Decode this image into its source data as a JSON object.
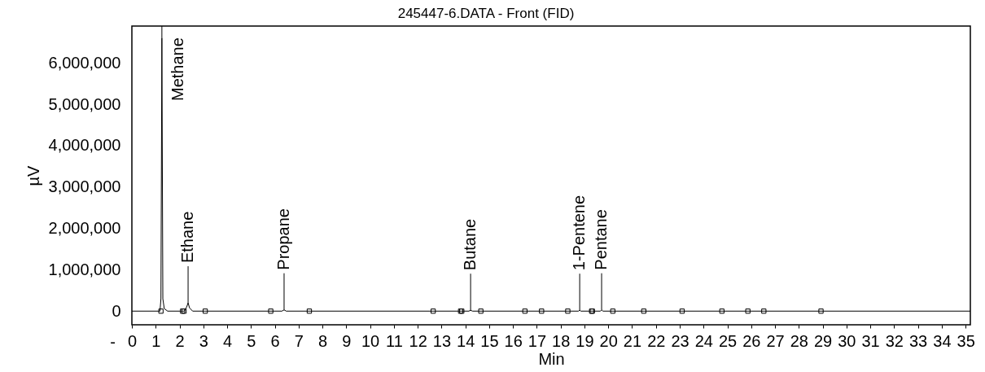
{
  "chart_data": {
    "type": "line",
    "title": "245447-6.DATA - Front (FID)",
    "xlabel": "Min",
    "ylabel": "µV",
    "xlim": [
      0,
      35.2
    ],
    "ylim": [
      -330000,
      6890000
    ],
    "xticks": [
      0,
      1,
      2,
      3,
      4,
      5,
      6,
      7,
      8,
      9,
      10,
      11,
      12,
      13,
      14,
      15,
      16,
      17,
      18,
      19,
      20,
      21,
      22,
      23,
      24,
      25,
      26,
      27,
      28,
      29,
      30,
      31,
      32,
      33,
      34,
      35
    ],
    "yticks": [
      0,
      {
        "value": 1000000,
        "label": "1,000,000"
      },
      {
        "value": 2000000,
        "label": "2,000,000"
      },
      {
        "value": 3000000,
        "label": "3,000,000"
      },
      {
        "value": 4000000,
        "label": "4,000,000"
      },
      {
        "value": 5000000,
        "label": "5,000,000"
      },
      {
        "value": 6000000,
        "label": "6,000,000"
      }
    ],
    "grid": false,
    "legend": false,
    "series": [
      {
        "type": "line",
        "color": "#000000",
        "x": [
          0,
          1.18,
          1.22,
          1.26,
          1.3,
          1.36,
          1.5,
          2.2,
          2.3,
          2.36,
          2.42,
          2.55,
          6.3,
          6.39,
          6.48,
          14.15,
          14.22,
          14.3,
          18.75,
          18.8,
          18.85,
          19.67,
          19.72,
          19.78,
          35.2
        ],
        "values": [
          0,
          0,
          300000,
          6600000,
          300000,
          60000,
          0,
          0,
          100000,
          200000,
          80000,
          0,
          0,
          30000,
          0,
          0,
          20000,
          0,
          0,
          20000,
          0,
          0,
          30000,
          0,
          0
        ]
      },
      {
        "type": "scatter",
        "color": "#000000",
        "marker": "square",
        "x": [
          1.22,
          2.13,
          2.19,
          3.08,
          5.83,
          7.45,
          12.65,
          13.8,
          13.85,
          14.65,
          16.5,
          17.2,
          18.3,
          19.3,
          19.33,
          20.19,
          21.49,
          23.1,
          24.77,
          25.86,
          26.53,
          28.93
        ],
        "values": [
          0,
          0,
          0,
          0,
          0,
          0,
          0,
          0,
          0,
          0,
          0,
          0,
          0,
          0,
          0,
          0,
          0,
          0,
          0,
          0,
          0,
          0
        ]
      }
    ],
    "annotations": [
      "-",
      {
        "text": "Methane",
        "x": 1.26,
        "y": 6600000
      },
      {
        "text": "Ethane",
        "x": 2.36,
        "y": 200000
      },
      {
        "text": "Propane",
        "x": 6.39,
        "y": 30000
      },
      {
        "text": "Butane",
        "x": 14.22,
        "y": 20000
      },
      {
        "text": "1-Pentene",
        "x": 18.8,
        "y": 20000
      },
      {
        "text": "Pentane",
        "x": 19.72,
        "y": 30000
      }
    ]
  }
}
